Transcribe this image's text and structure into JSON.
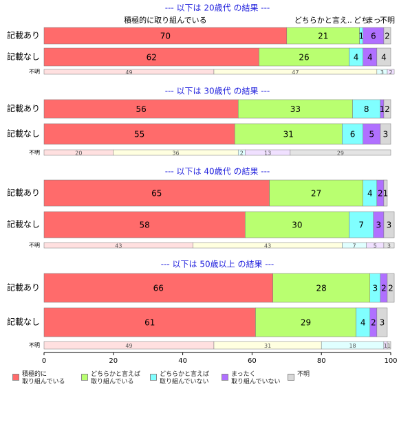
{
  "chart_data": {
    "type": "bar",
    "orientation": "horizontal",
    "stacked": true,
    "xlim": [
      0,
      100
    ],
    "xticks": [
      0,
      20,
      40,
      60,
      80,
      100
    ],
    "series": [
      {
        "name": "積極的に\n取り組んでいる",
        "color": "#ff6b6b",
        "pale_color": "#ffe0e0"
      },
      {
        "name": "どちらかと言えば\n取り組んでいる",
        "color": "#b9ff70",
        "pale_color": "#ffffe0"
      },
      {
        "name": "どちらかと言えば\n取り組んでいない",
        "color": "#80ffff",
        "pale_color": "#e0ffff"
      },
      {
        "name": "まったく\n取り組んでいない",
        "color": "#b070ff",
        "pale_color": "#f0e0ff"
      },
      {
        "name": "不明",
        "color": "#d8d8d8",
        "pale_color": "#e4e4e4"
      }
    ],
    "panels": [
      {
        "title": "--- 以下は 20歳代 の結果 ---",
        "column_labels": [
          "積極的に取り組んでいる",
          "どちらかと言え..",
          "どち",
          "まっ",
          "不明"
        ],
        "groups": [
          {
            "name": "記載あり",
            "values": [
              70,
              21,
              1,
              6,
              2
            ]
          },
          {
            "name": "記載なし",
            "values": [
              62,
              26,
              4,
              4,
              4
            ]
          },
          {
            "name": "不明",
            "palette": "pale",
            "values": [
              49,
              47,
              3,
              2,
              0
            ]
          }
        ]
      },
      {
        "title": "--- 以下は 30歳代 の結果 ---",
        "groups": [
          {
            "name": "記載あり",
            "values": [
              56,
              33,
              8,
              1,
              2
            ]
          },
          {
            "name": "記載なし",
            "values": [
              55,
              31,
              6,
              5,
              3
            ]
          },
          {
            "name": "不明",
            "palette": "pale",
            "values": [
              20,
              36,
              2,
              13,
              29
            ]
          }
        ]
      },
      {
        "title": "--- 以下は 40歳代 の結果 ---",
        "groups": [
          {
            "name": "記載あり",
            "values": [
              65,
              27,
              4,
              2,
              1
            ]
          },
          {
            "name": "記載なし",
            "values": [
              58,
              30,
              7,
              3,
              3
            ]
          },
          {
            "name": "不明",
            "palette": "pale",
            "values": [
              43,
              43,
              7,
              5,
              3
            ]
          }
        ]
      },
      {
        "title": "--- 以下は 50歳以上 の結果 ---",
        "groups": [
          {
            "name": "記載あり",
            "values": [
              66,
              28,
              3,
              2,
              2
            ]
          },
          {
            "name": "記載なし",
            "values": [
              61,
              29,
              4,
              2,
              3
            ]
          },
          {
            "name": "不明",
            "palette": "pale",
            "values": [
              49,
              31,
              18,
              1,
              1
            ]
          }
        ]
      }
    ]
  }
}
